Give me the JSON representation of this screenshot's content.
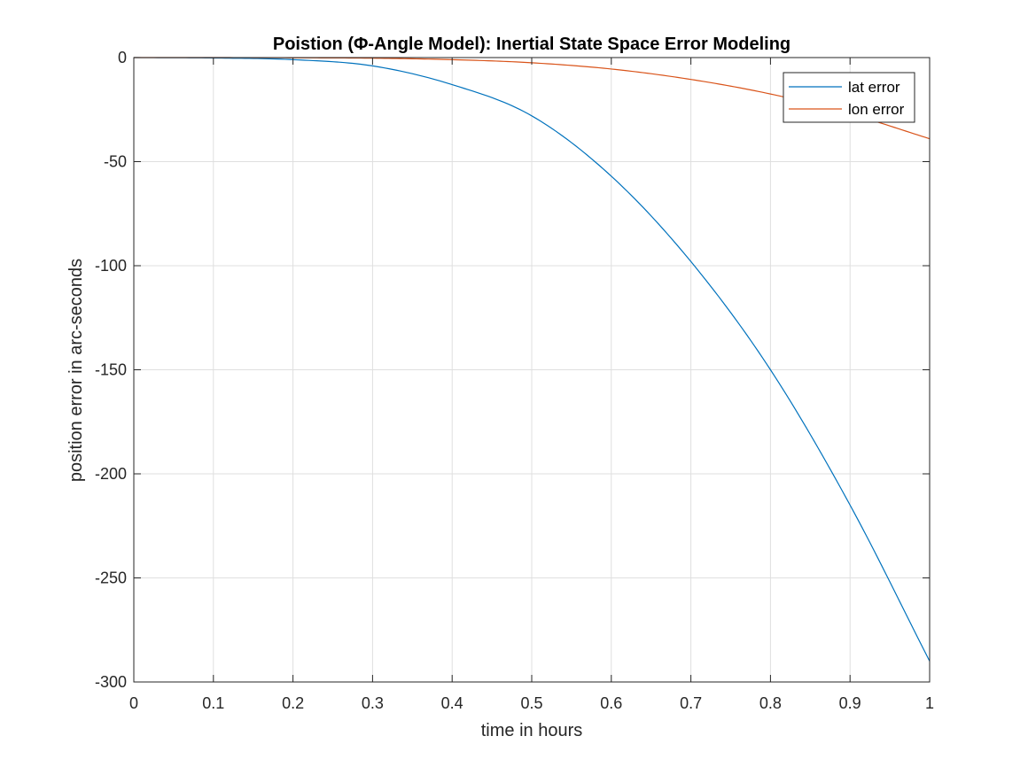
{
  "chart_data": {
    "type": "line",
    "title": "Poistion (Φ-Angle Model): Inertial State Space Error Modeling",
    "xlabel": "time in hours",
    "ylabel": "position error in arc-seconds",
    "xlim": [
      0,
      1
    ],
    "ylim": [
      -300,
      0
    ],
    "xticks": [
      0,
      0.1,
      0.2,
      0.3,
      0.4,
      0.5,
      0.6,
      0.7,
      0.8,
      0.9,
      1
    ],
    "xtick_labels": [
      "0",
      "0.1",
      "0.2",
      "0.3",
      "0.4",
      "0.5",
      "0.6",
      "0.7",
      "0.8",
      "0.9",
      "1"
    ],
    "yticks": [
      0,
      -50,
      -100,
      -150,
      -200,
      -250,
      -300
    ],
    "ytick_labels": [
      "0",
      "-50",
      "-100",
      "-150",
      "-200",
      "-250",
      "-300"
    ],
    "grid": true,
    "legend_position": "top-right",
    "x": [
      0,
      0.1,
      0.2,
      0.3,
      0.4,
      0.5,
      0.6,
      0.7,
      0.8,
      0.9,
      1.0
    ],
    "series": [
      {
        "name": "lat error",
        "color": "#0072BD",
        "values": [
          0,
          -0.2,
          -1.0,
          -4.0,
          -13,
          -28,
          -57,
          -98,
          -150,
          -215,
          -290
        ]
      },
      {
        "name": "lon error",
        "color": "#D95319",
        "values": [
          0,
          0,
          -0.1,
          -0.3,
          -1.0,
          -2.5,
          -5.5,
          -10.5,
          -17.5,
          -27,
          -39
        ]
      }
    ]
  }
}
